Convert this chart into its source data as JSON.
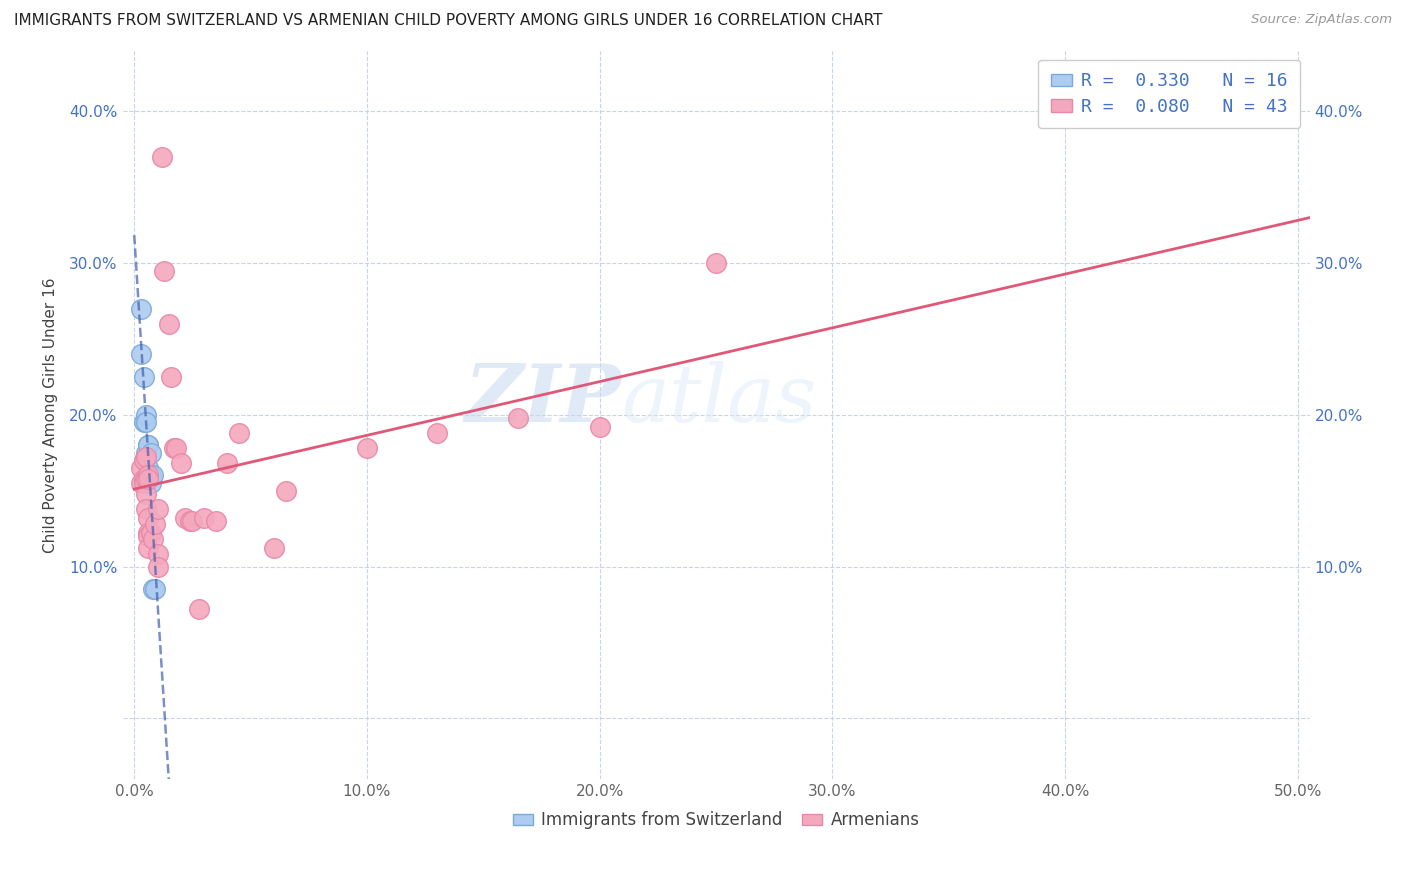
{
  "title": "IMMIGRANTS FROM SWITZERLAND VS ARMENIAN CHILD POVERTY AMONG GIRLS UNDER 16 CORRELATION CHART",
  "source": "Source: ZipAtlas.com",
  "ylabel": "Child Poverty Among Girls Under 16",
  "x_ticks": [
    0.0,
    0.1,
    0.2,
    0.3,
    0.4,
    0.5
  ],
  "x_tick_labels": [
    "0.0%",
    "10.0%",
    "20.0%",
    "30.0%",
    "40.0%",
    "50.0%"
  ],
  "y_ticks": [
    0.0,
    0.1,
    0.2,
    0.3,
    0.4
  ],
  "y_tick_labels_left": [
    "",
    "10.0%",
    "20.0%",
    "30.0%",
    "40.0%"
  ],
  "y_tick_labels_right": [
    "",
    "10.0%",
    "20.0%",
    "30.0%",
    "40.0%"
  ],
  "xlim": [
    -0.005,
    0.505
  ],
  "ylim": [
    -0.04,
    0.44
  ],
  "legend_entries": [
    {
      "label": "R =  0.330   N = 16"
    },
    {
      "label": "R =  0.080   N = 43"
    }
  ],
  "watermark_zip": "ZIP",
  "watermark_atlas": "atlas",
  "series1_color": "#aecbf0",
  "series2_color": "#f4a8be",
  "series1_edge": "#7aaad8",
  "series2_edge": "#e888a8",
  "trendline1_color": "#4060b0",
  "trendline2_color": "#e05878",
  "trendline1_style": "--",
  "trendline2_style": "-",
  "grid_color": "#c8d4e8",
  "grid_style": "--",
  "background_color": "#ffffff",
  "swiss_points": [
    [
      0.003,
      0.27
    ],
    [
      0.003,
      0.24
    ],
    [
      0.004,
      0.195
    ],
    [
      0.004,
      0.225
    ],
    [
      0.005,
      0.2
    ],
    [
      0.005,
      0.195
    ],
    [
      0.005,
      0.175
    ],
    [
      0.006,
      0.18
    ],
    [
      0.006,
      0.165
    ],
    [
      0.006,
      0.18
    ],
    [
      0.007,
      0.175
    ],
    [
      0.007,
      0.16
    ],
    [
      0.007,
      0.155
    ],
    [
      0.008,
      0.085
    ],
    [
      0.008,
      0.16
    ],
    [
      0.009,
      0.085
    ]
  ],
  "armenian_points": [
    [
      0.003,
      0.165
    ],
    [
      0.003,
      0.155
    ],
    [
      0.004,
      0.17
    ],
    [
      0.004,
      0.158
    ],
    [
      0.004,
      0.155
    ],
    [
      0.005,
      0.172
    ],
    [
      0.005,
      0.158
    ],
    [
      0.005,
      0.148
    ],
    [
      0.005,
      0.138
    ],
    [
      0.006,
      0.16
    ],
    [
      0.006,
      0.158
    ],
    [
      0.006,
      0.132
    ],
    [
      0.006,
      0.122
    ],
    [
      0.006,
      0.12
    ],
    [
      0.006,
      0.112
    ],
    [
      0.007,
      0.122
    ],
    [
      0.008,
      0.118
    ],
    [
      0.009,
      0.128
    ],
    [
      0.01,
      0.138
    ],
    [
      0.01,
      0.108
    ],
    [
      0.01,
      0.1
    ],
    [
      0.012,
      0.37
    ],
    [
      0.013,
      0.295
    ],
    [
      0.015,
      0.26
    ],
    [
      0.016,
      0.225
    ],
    [
      0.017,
      0.178
    ],
    [
      0.018,
      0.178
    ],
    [
      0.02,
      0.168
    ],
    [
      0.022,
      0.132
    ],
    [
      0.024,
      0.13
    ],
    [
      0.025,
      0.13
    ],
    [
      0.028,
      0.072
    ],
    [
      0.03,
      0.132
    ],
    [
      0.035,
      0.13
    ],
    [
      0.04,
      0.168
    ],
    [
      0.045,
      0.188
    ],
    [
      0.06,
      0.112
    ],
    [
      0.065,
      0.15
    ],
    [
      0.1,
      0.178
    ],
    [
      0.13,
      0.188
    ],
    [
      0.165,
      0.198
    ],
    [
      0.2,
      0.192
    ],
    [
      0.25,
      0.3
    ]
  ]
}
